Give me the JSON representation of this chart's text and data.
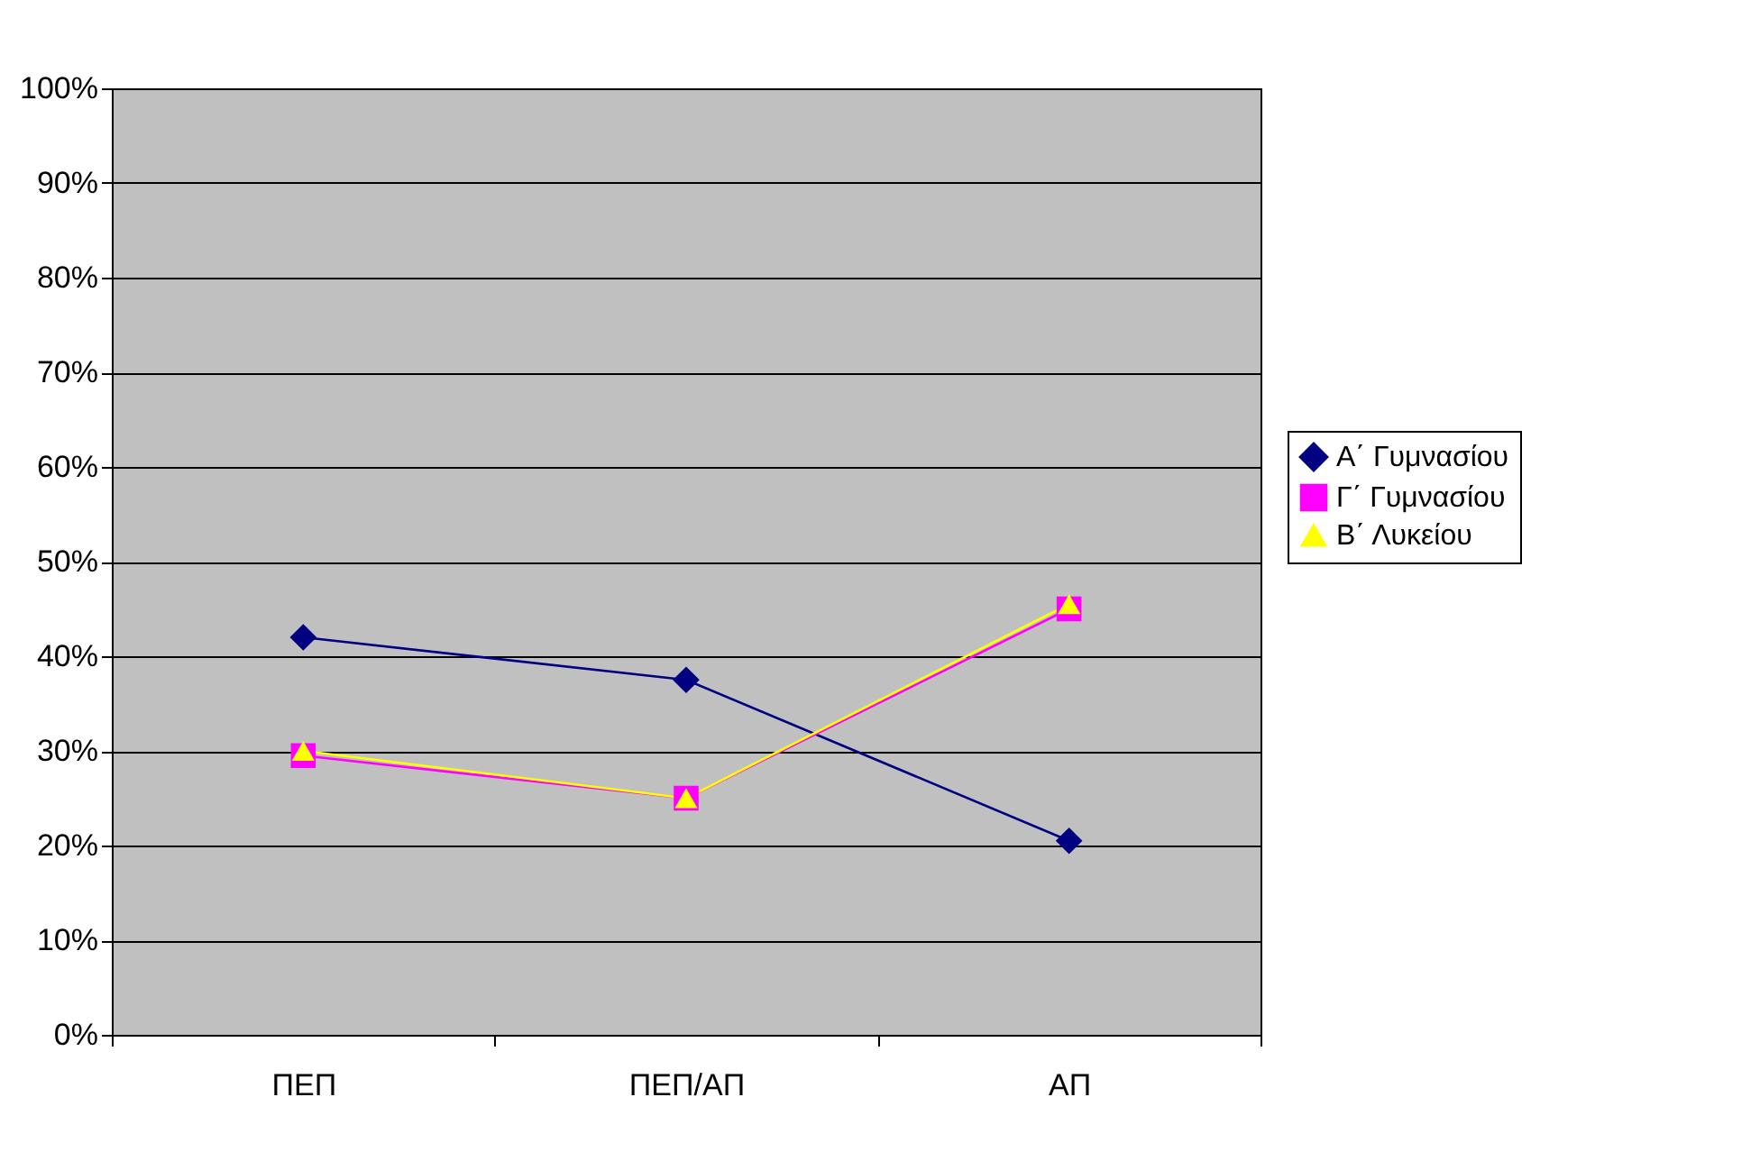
{
  "chart_data": {
    "type": "line",
    "categories": [
      "ΠΕΠ",
      "ΠΕΠ/ΑΠ",
      "ΑΠ"
    ],
    "series": [
      {
        "name": "Α΄ Γυμνασίου",
        "color": "#000080",
        "marker": "diamond",
        "values": [
          42,
          37.5,
          20.5
        ]
      },
      {
        "name": "Γ΄ Γυμνασίου",
        "color": "#ff00ff",
        "marker": "square",
        "values": [
          29.5,
          25,
          45
        ]
      },
      {
        "name": "Β΄ Λυκείου",
        "color": "#ffff00",
        "marker": "triangle",
        "values": [
          30,
          25,
          45.5
        ]
      }
    ],
    "ylim": [
      0,
      100
    ],
    "yticks": [
      {
        "value": 0,
        "label": "0%"
      },
      {
        "value": 10,
        "label": "10%"
      },
      {
        "value": 20,
        "label": "20%"
      },
      {
        "value": 30,
        "label": "30%"
      },
      {
        "value": 40,
        "label": "40%"
      },
      {
        "value": 50,
        "label": "50%"
      },
      {
        "value": 60,
        "label": "60%"
      },
      {
        "value": 70,
        "label": "70%"
      },
      {
        "value": 80,
        "label": "80%"
      },
      {
        "value": 90,
        "label": "90%"
      },
      {
        "value": 100,
        "label": "100%"
      }
    ],
    "grid": "y",
    "legend": "right",
    "line_style": "solid"
  }
}
